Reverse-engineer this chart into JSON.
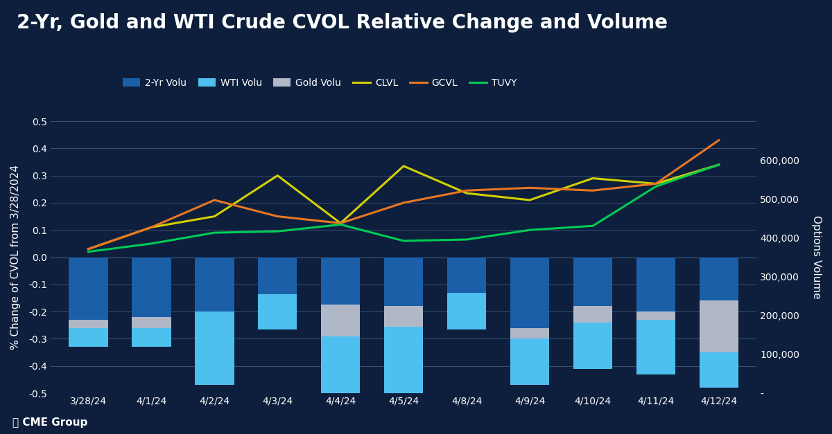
{
  "title": "2-Yr, Gold and WTI Crude CVOL Relative Change and Volume",
  "categories": [
    "3/28/24",
    "4/1/24",
    "4/2/24",
    "4/3/24",
    "4/4/24",
    "4/5/24",
    "4/8/24",
    "4/9/24",
    "4/10/24",
    "4/11/24",
    "4/12/24"
  ],
  "yr2_volu": [
    -0.33,
    -0.33,
    -0.47,
    -0.265,
    -0.5,
    -0.5,
    -0.265,
    -0.47,
    -0.41,
    -0.43,
    -0.48
  ],
  "wti_volu": [
    0.07,
    0.07,
    0.27,
    0.13,
    0.21,
    0.32,
    0.135,
    0.17,
    0.23,
    0.2,
    0.32
  ],
  "gold_volu": [
    0.03,
    0.04,
    0.0,
    0.0,
    0.115,
    -0.075,
    0.0,
    0.04,
    -0.06,
    0.03,
    -0.19
  ],
  "clvl": [
    0.03,
    0.11,
    0.15,
    0.3,
    0.125,
    0.335,
    0.235,
    0.21,
    0.29,
    0.27,
    0.34
  ],
  "gcvl": [
    0.03,
    0.11,
    0.21,
    0.15,
    0.125,
    0.2,
    0.245,
    0.255,
    0.245,
    0.27,
    0.43
  ],
  "tuvy": [
    0.02,
    0.05,
    0.09,
    0.095,
    0.12,
    0.06,
    0.065,
    0.1,
    0.115,
    0.26,
    0.34
  ],
  "ylim_left": [
    -0.5,
    0.5
  ],
  "ylim_right": [
    0,
    700000
  ],
  "background_color": "#0d1f3c",
  "bar_color_2yr": "#1a5fa8",
  "bar_color_wti": "#4ec0f0",
  "bar_color_gold": "#b0b8c8",
  "line_color_clvl": "#d4d000",
  "line_color_gcvl": "#e87722",
  "line_color_tuvy": "#00cc55",
  "text_color": "white",
  "grid_color": "#3a5070",
  "ylabel_left": "% Change of CVOL from 3/28/2024",
  "ylabel_right": "Options Volume",
  "title_fontsize": 20,
  "label_fontsize": 11
}
